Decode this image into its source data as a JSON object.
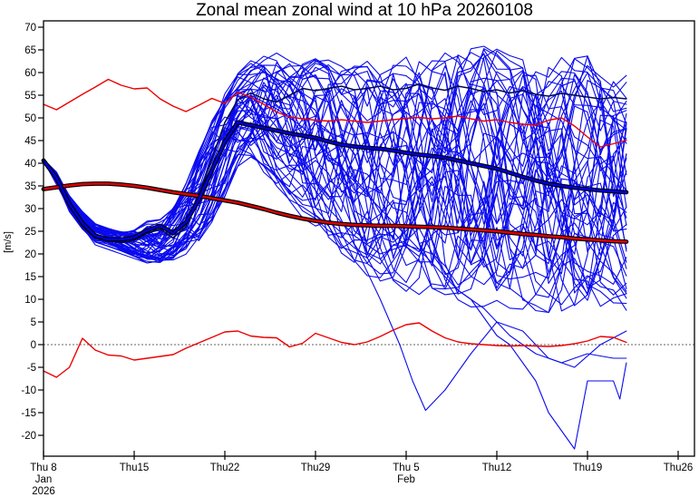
{
  "chart_data": {
    "type": "line",
    "title": "Zonal mean zonal wind at 10 hPa 20260108",
    "ylabel": "[m/s]",
    "xlim_days": [
      0,
      50.3
    ],
    "ylim": [
      -24.6,
      71.4
    ],
    "grid": false,
    "legend": "none",
    "x_start_day": 0,
    "x_step_days": 1,
    "zero_line": {
      "value": 0,
      "style": "dotted",
      "color": "#666666"
    },
    "x_ticks": {
      "days": [
        0,
        7,
        14,
        21,
        28,
        35,
        42,
        49
      ],
      "labels": [
        "Thu 8",
        "Thu15",
        "Thu22",
        "Thu29",
        "Thu 5",
        "Thu12",
        "Thu19",
        "Thu26"
      ],
      "sub_labels": [
        {
          "day": 0,
          "lines": [
            "Jan",
            "2026"
          ]
        },
        {
          "day": 28,
          "lines": [
            "Feb"
          ]
        }
      ]
    },
    "y_ticks": {
      "start": -20,
      "end": 70,
      "step": 5
    },
    "colors": {
      "member": "#0a0aee",
      "mean_core": "#0000e0",
      "climo_core": "#dd0000",
      "climo_thin": "#ee0000",
      "control": "#000a50",
      "outline": "#000000",
      "frame": "#000000"
    },
    "series": {
      "ensemble_mean": {
        "label": "ensemble mean",
        "values": [
          40.6,
          36.8,
          31.0,
          26.8,
          24.0,
          23.2,
          23.2,
          23.6,
          25.2,
          26.2,
          24.6,
          27.0,
          32.0,
          38.5,
          44.8,
          49.0,
          48.4,
          47.8,
          47.2,
          46.6,
          46.1,
          45.6,
          44.8,
          44.1,
          43.7,
          43.4,
          43.2,
          42.8,
          42.3,
          41.9,
          41.6,
          41.2,
          40.6,
          40.0,
          39.4,
          38.8,
          37.9,
          37.0,
          36.2,
          35.5,
          35.0,
          34.6,
          34.3,
          34.0,
          33.8,
          33.6
        ]
      },
      "climatology_mean": {
        "label": "climatological mean",
        "values": [
          34.3,
          34.7,
          35.1,
          35.4,
          35.5,
          35.5,
          35.3,
          35.0,
          34.6,
          34.1,
          33.6,
          33.2,
          32.8,
          32.3,
          31.8,
          31.3,
          30.6,
          29.9,
          29.1,
          28.4,
          27.8,
          27.3,
          26.9,
          26.6,
          26.4,
          26.3,
          26.2,
          26.2,
          26.1,
          26.0,
          25.9,
          25.8,
          25.6,
          25.4,
          25.2,
          25.0,
          24.7,
          24.4,
          24.2,
          23.9,
          23.7,
          23.4,
          23.2,
          23.0,
          22.8,
          22.7
        ]
      },
      "climatology_max": {
        "label": "climatological max",
        "values": [
          53.0,
          51.8,
          53.5,
          55.2,
          56.8,
          58.5,
          57.2,
          56.4,
          56.6,
          54.2,
          52.6,
          51.4,
          52.8,
          54.3,
          53.2,
          55.6,
          54.6,
          53.0,
          51.3,
          50.2,
          49.8,
          49.5,
          49.3,
          49.6,
          49.3,
          49.0,
          49.3,
          49.6,
          49.9,
          50.1,
          49.8,
          50.0,
          50.4,
          49.8,
          49.3,
          49.6,
          49.0,
          48.6,
          48.4,
          49.5,
          50.0,
          48.2,
          45.8,
          43.6,
          44.3,
          45.1
        ]
      },
      "climatology_min": {
        "label": "climatological min",
        "values": [
          -5.8,
          -7.2,
          -5.0,
          1.4,
          -1.2,
          -2.3,
          -2.5,
          -3.4,
          -3.0,
          -2.6,
          -2.2,
          -0.8,
          0.4,
          1.6,
          2.8,
          3.0,
          1.9,
          1.6,
          1.5,
          -0.5,
          0.3,
          2.5,
          1.5,
          0.5,
          0.0,
          0.6,
          1.8,
          3.2,
          4.4,
          4.8,
          3.0,
          1.5,
          0.6,
          0.2,
          0.0,
          -0.2,
          -0.3,
          -0.2,
          -0.3,
          -0.4,
          -0.2,
          0.2,
          0.8,
          1.8,
          1.6,
          0.5
        ]
      },
      "control": {
        "label": "control member",
        "values": [
          40.6,
          36.5,
          31.0,
          26.0,
          23.5,
          22.8,
          22.5,
          23.0,
          24.5,
          25.5,
          23.5,
          26.0,
          33.0,
          41.0,
          49.0,
          54.0,
          55.5,
          54.2,
          53.5,
          55.0,
          56.5,
          56.0,
          56.5,
          57.0,
          56.2,
          56.5,
          57.0,
          56.2,
          56.5,
          57.5,
          56.6,
          56.1,
          57.0,
          56.5,
          55.8,
          56.2,
          55.5,
          56.0,
          55.2,
          54.8,
          55.4,
          55.0,
          54.6,
          54.2,
          54.5,
          54.2
        ]
      }
    },
    "ensemble": {
      "member_count": 46,
      "seed": 20260108,
      "envelope_lower": [
        40.2,
        35.6,
        29.0,
        25.2,
        22.4,
        21.6,
        20.6,
        19.2,
        18.0,
        17.6,
        18.2,
        19.5,
        21.5,
        26.0,
        32.0,
        38.0,
        39.5,
        37.0,
        34.0,
        31.0,
        27.5,
        24.0,
        20.5,
        17.5,
        15.5,
        14.0,
        12.5,
        11.5,
        10.5,
        9.5,
        9.0,
        8.5,
        8.0,
        7.5,
        7.0,
        6.5,
        6.0,
        5.5,
        5.0,
        4.5,
        4.0,
        4.0,
        4.5,
        5.0,
        5.5,
        6.0
      ],
      "envelope_upper": [
        41.0,
        38.2,
        33.0,
        29.5,
        26.8,
        25.8,
        25.4,
        26.0,
        27.5,
        28.0,
        31.0,
        36.0,
        43.0,
        50.0,
        56.0,
        60.5,
        63.0,
        64.5,
        65.0,
        64.5,
        64.0,
        64.0,
        63.5,
        63.0,
        63.0,
        63.5,
        64.0,
        64.5,
        65.0,
        65.0,
        65.5,
        66.0,
        66.5,
        67.5,
        68.0,
        67.0,
        66.0,
        65.5,
        65.0,
        65.0,
        65.5,
        66.5,
        67.0,
        66.0,
        64.5,
        63.0
      ]
    },
    "outlier_members": [
      {
        "x": [
          0,
          2,
          4,
          6,
          8,
          10,
          12,
          13,
          14,
          15,
          16,
          18,
          20,
          22,
          24,
          26,
          27.5,
          28.5,
          29.5,
          31,
          33,
          35,
          37,
          39,
          41,
          43,
          45
        ],
        "v": [
          40.6,
          31,
          23,
          22,
          19,
          20,
          28,
          35,
          45,
          52,
          55,
          48,
          40,
          33,
          22,
          10,
          0,
          -8,
          -14.5,
          -10,
          -2,
          5,
          3,
          -3,
          -5,
          0,
          3
        ]
      },
      {
        "x": [
          0,
          2,
          4,
          6,
          8,
          10,
          12,
          13,
          14,
          15,
          16,
          18,
          20,
          22,
          24,
          26,
          28,
          30,
          32,
          33,
          34,
          35,
          36,
          37,
          38,
          39,
          40,
          41,
          42,
          44,
          44.5,
          45
        ],
        "v": [
          40.6,
          32,
          24,
          21,
          18,
          19,
          26,
          33,
          42,
          50,
          55,
          52,
          48,
          42,
          36,
          30,
          24,
          18,
          12,
          10,
          6,
          2,
          0,
          -4,
          -8,
          -15,
          -19,
          -23,
          -8,
          -8,
          -12,
          -4
        ]
      },
      {
        "x": [
          0,
          2,
          4,
          6,
          8,
          10,
          12,
          13,
          14,
          15,
          16,
          18,
          20,
          22,
          24,
          26,
          28,
          30,
          32,
          34,
          36,
          38,
          40,
          42,
          44,
          45
        ],
        "v": [
          40.6,
          30,
          22,
          20,
          18,
          19,
          30,
          38,
          44,
          48,
          52,
          46,
          38,
          30,
          24,
          20,
          22,
          20,
          12,
          8,
          2,
          -2,
          -4,
          -2,
          -3,
          -3
        ]
      }
    ]
  }
}
